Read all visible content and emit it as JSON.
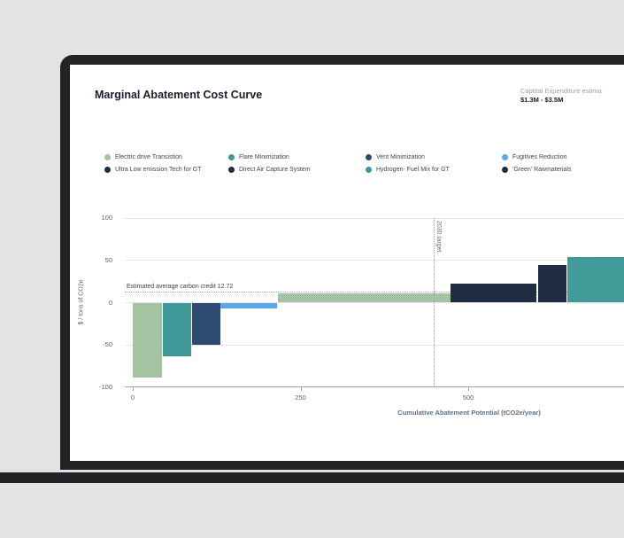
{
  "device": {
    "type": "laptop-mockup"
  },
  "header": {
    "title": "Marginal Abatement Cost Curve",
    "capex_label": "Captital Expenditure estima",
    "capex_value": "$1.3M - $3.5M"
  },
  "chart_data": {
    "type": "bar",
    "variant": "marginal-abatement-cost-curve-waterfall",
    "title": "Marginal Abatement Cost Curve",
    "xlabel": "Cumulative Abatement Potential (tCO2e/year)",
    "ylabel": "$ / tons of CO2e",
    "xticks": [
      0,
      250,
      500
    ],
    "yticks": [
      100,
      50,
      0,
      -50,
      -100
    ],
    "ylim": [
      -100,
      100
    ],
    "grid": true,
    "legend_position": "top",
    "legend": [
      {
        "label": "Electric drive Transistion",
        "color": "#a5c2a2"
      },
      {
        "label": "Flare Minimization",
        "color": "#3f9898"
      },
      {
        "label": "Vent Minimization",
        "color": "#2d4a73"
      },
      {
        "label": "Fugitives Reduction",
        "color": "#58a8ea"
      },
      {
        "label": "Ultra Low emission Tech for GT",
        "color": "#1f2d42"
      },
      {
        "label": "Direct Air Capture System",
        "color": "#1f2d42"
      },
      {
        "label": "Hydrogen- Fuel Mix for GT",
        "color": "#3f9898"
      },
      {
        "label": "'Green' Rawmaterials",
        "color": "#1f2d42"
      }
    ],
    "bars": [
      {
        "x_start": 0,
        "x_end": 43,
        "value": -88,
        "color": "#a5c2a2"
      },
      {
        "x_start": 45,
        "x_end": 87,
        "value": -63,
        "color": "#3f9898"
      },
      {
        "x_start": 89,
        "x_end": 130,
        "value": -49,
        "color": "#2d4a73"
      },
      {
        "x_start": 131,
        "x_end": 215,
        "value": -6,
        "color": "#58a8ea"
      },
      {
        "x_start": 216,
        "x_end": 474,
        "value": 10,
        "color": "#a5c2a2"
      },
      {
        "x_start": 474,
        "x_end": 602,
        "value": 22,
        "color": "#1f2d42"
      },
      {
        "x_start": 604,
        "x_end": 646,
        "value": 44,
        "color": "#1f2d42"
      },
      {
        "x_start": 648,
        "x_end": 790,
        "value": 53,
        "color": "#429b99"
      }
    ],
    "annotations": {
      "carbon_credit": {
        "label": "Estimated average carbon credit 12.72",
        "value": 12.72
      },
      "target_line": {
        "label": "2030 target",
        "x": 448
      }
    }
  }
}
